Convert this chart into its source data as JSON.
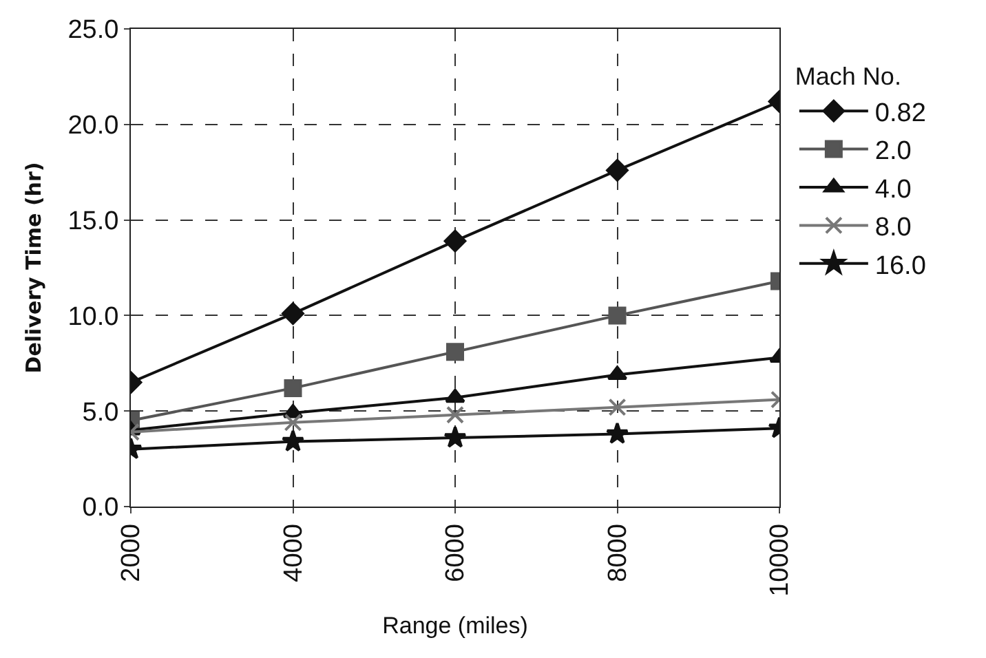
{
  "chart_data": {
    "type": "line",
    "xlabel": "Range (miles)",
    "ylabel": "Delivery Time (hr)",
    "legend_title": "Mach No.",
    "legend": "right",
    "x": [
      2000,
      4000,
      6000,
      8000,
      10000
    ],
    "xlim": [
      2000,
      10000
    ],
    "xticks": [
      2000,
      4000,
      6000,
      8000,
      10000
    ],
    "ylim": [
      0,
      25
    ],
    "yticks": [
      {
        "value": 0,
        "label": "0.0"
      },
      {
        "value": 5,
        "label": "5.0"
      },
      {
        "value": 10,
        "label": "10.0"
      },
      {
        "value": 15,
        "label": "15.0"
      },
      {
        "value": 20,
        "label": "20.0"
      },
      {
        "value": 25,
        "label": "25.0"
      }
    ],
    "grid": true,
    "line_style": "solid",
    "series": [
      {
        "name": "0.82",
        "color": "#111111",
        "marker": "diamond",
        "values": [
          6.5,
          10.1,
          13.9,
          17.6,
          21.2
        ]
      },
      {
        "name": "2.0",
        "color": "#555555",
        "marker": "square",
        "values": [
          4.5,
          6.2,
          8.1,
          10.0,
          11.8
        ]
      },
      {
        "name": "4.0",
        "color": "#111111",
        "marker": "triangle",
        "values": [
          4.0,
          4.9,
          5.7,
          6.9,
          7.8
        ]
      },
      {
        "name": "8.0",
        "color": "#777777",
        "marker": "cross",
        "values": [
          3.9,
          4.4,
          4.8,
          5.2,
          5.6
        ]
      },
      {
        "name": "16.0",
        "color": "#111111",
        "marker": "star",
        "values": [
          3.0,
          3.4,
          3.6,
          3.8,
          4.1
        ]
      }
    ]
  }
}
